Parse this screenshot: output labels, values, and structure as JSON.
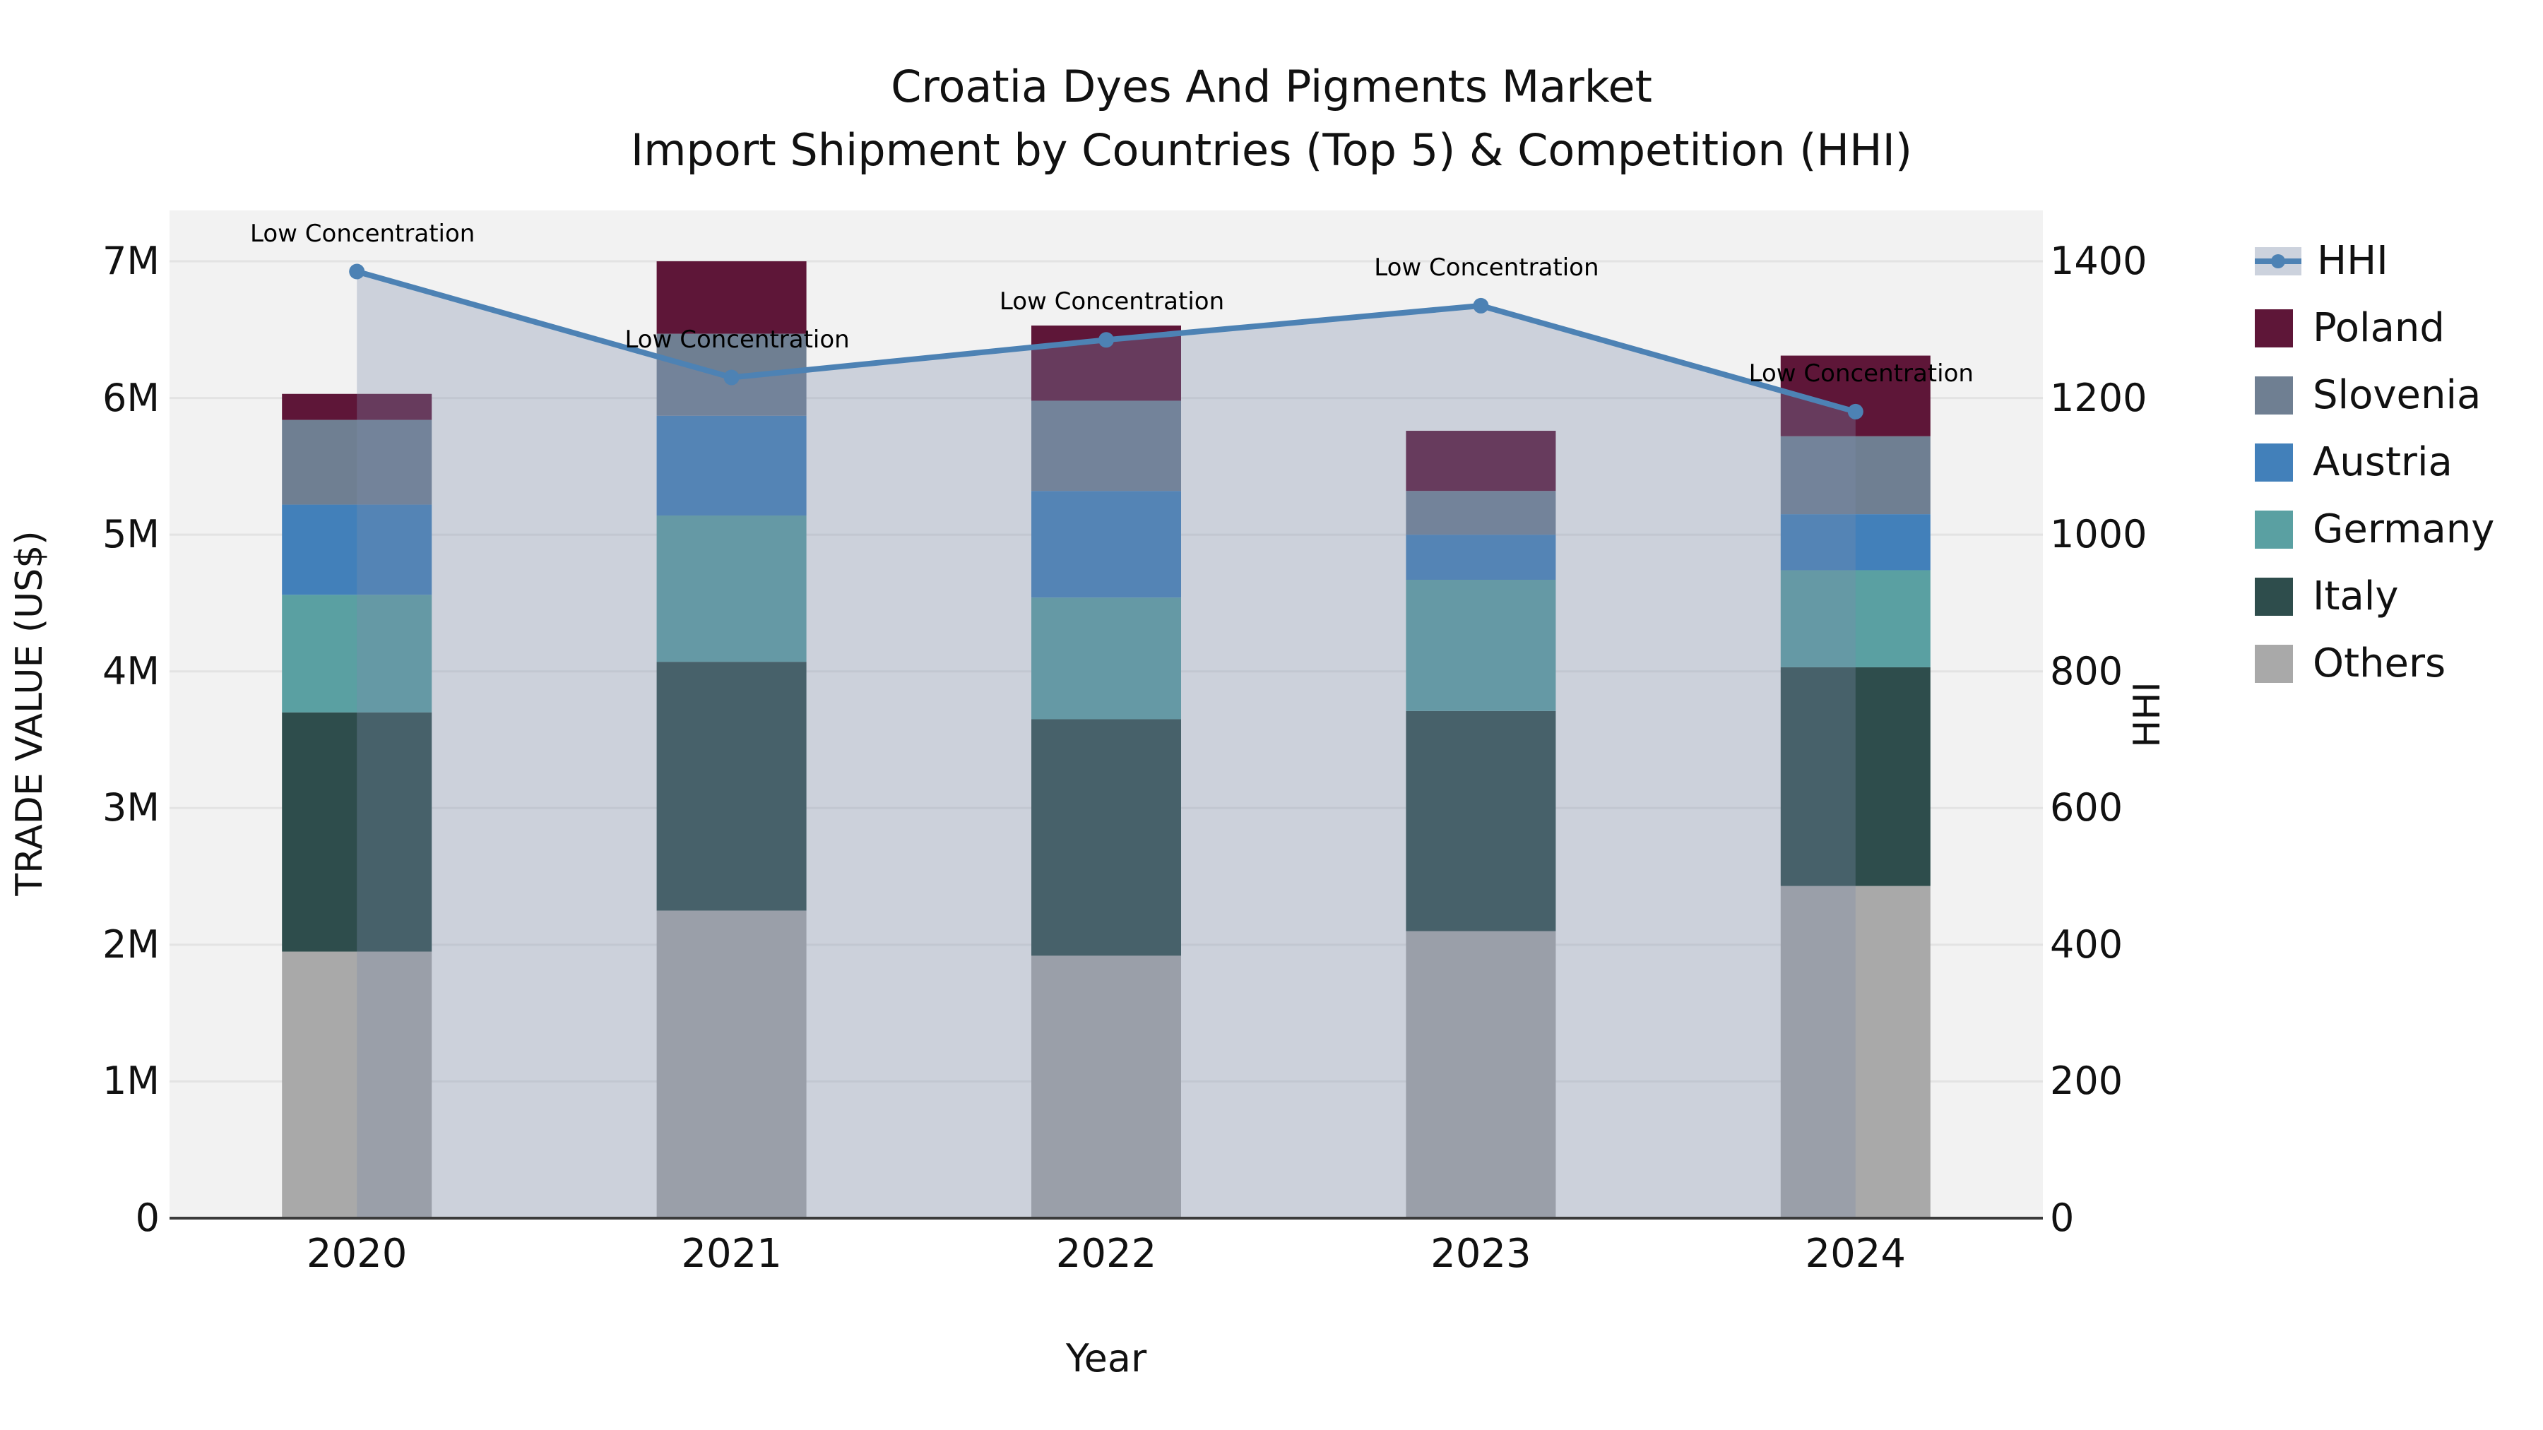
{
  "title": {
    "line1": "Croatia Dyes And Pigments Market",
    "line2": "Import Shipment by Countries (Top 5) & Competition (HHI)"
  },
  "axes": {
    "x": {
      "title": "Year",
      "ticks": [
        "2020",
        "2021",
        "2022",
        "2023",
        "2024"
      ]
    },
    "y_left": {
      "title": "TRADE VALUE (US$)",
      "ticks": [
        "0",
        "1M",
        "2M",
        "3M",
        "4M",
        "5M",
        "6M",
        "7M"
      ]
    },
    "y_right": {
      "title": "HHI",
      "ticks": [
        "0",
        "200",
        "400",
        "600",
        "800",
        "1000",
        "1200",
        "1400"
      ]
    }
  },
  "legend": {
    "items": [
      {
        "label": "HHI",
        "type": "line",
        "color": "#4D82B4"
      },
      {
        "label": "Poland",
        "type": "box",
        "color": "#5E1638"
      },
      {
        "label": "Slovenia",
        "type": "box",
        "color": "#6F7F92"
      },
      {
        "label": "Austria",
        "type": "box",
        "color": "#4280BA"
      },
      {
        "label": "Germany",
        "type": "box",
        "color": "#5AA0A2"
      },
      {
        "label": "Italy",
        "type": "box",
        "color": "#2E4D4C"
      },
      {
        "label": "Others",
        "type": "box",
        "color": "#A9A9A9"
      }
    ]
  },
  "chart_data": {
    "type": "bar",
    "stacked": true,
    "title": "Croatia Dyes And Pigments Market — Import Shipment by Countries (Top 5) & Competition (HHI)",
    "xlabel": "Year",
    "ylabel_left": "TRADE VALUE (US$)",
    "ylabel_right": "HHI",
    "unit": "US$ millions",
    "categories": [
      2020,
      2021,
      2022,
      2023,
      2024
    ],
    "series": [
      {
        "name": "Poland",
        "values": [
          0.19,
          0.53,
          0.55,
          0.44,
          0.59
        ]
      },
      {
        "name": "Slovenia",
        "values": [
          0.62,
          0.6,
          0.66,
          0.32,
          0.57
        ]
      },
      {
        "name": "Austria",
        "values": [
          0.66,
          0.73,
          0.78,
          0.33,
          0.41
        ]
      },
      {
        "name": "Germany",
        "values": [
          0.86,
          1.07,
          0.89,
          0.96,
          0.71
        ]
      },
      {
        "name": "Italy",
        "values": [
          1.75,
          1.82,
          1.73,
          1.61,
          1.6
        ]
      },
      {
        "name": "Others",
        "values": [
          1.95,
          2.25,
          1.92,
          2.1,
          2.43
        ]
      }
    ],
    "stack_order_bottom_to_top": [
      "Others",
      "Italy",
      "Germany",
      "Austria",
      "Slovenia",
      "Poland"
    ],
    "line_series": {
      "name": "HHI",
      "axis": "right",
      "values": [
        1385,
        1230,
        1285,
        1335,
        1180
      ],
      "has_area_fill": true
    },
    "annotations": [
      "Low Concentration",
      "Low Concentration",
      "Low Concentration",
      "Low Concentration",
      "Low Concentration"
    ],
    "ylim_left": [
      0,
      7
    ],
    "ylim_right": [
      0,
      1400
    ],
    "grid": "horizontal",
    "legend_position": "right",
    "colors": {
      "Poland": "#5E1638",
      "Slovenia": "#6F7F92",
      "Austria": "#4280BA",
      "Germany": "#5AA0A2",
      "Italy": "#2E4D4C",
      "Others": "#A9A9A9",
      "hhi_line": "#4D82B4",
      "hhi_area": "rgba(123,139,171,0.32)",
      "plot_background": "#F2F2F2",
      "gridline": "#E3E3E3",
      "axis_line": "#3B3B3B"
    }
  }
}
